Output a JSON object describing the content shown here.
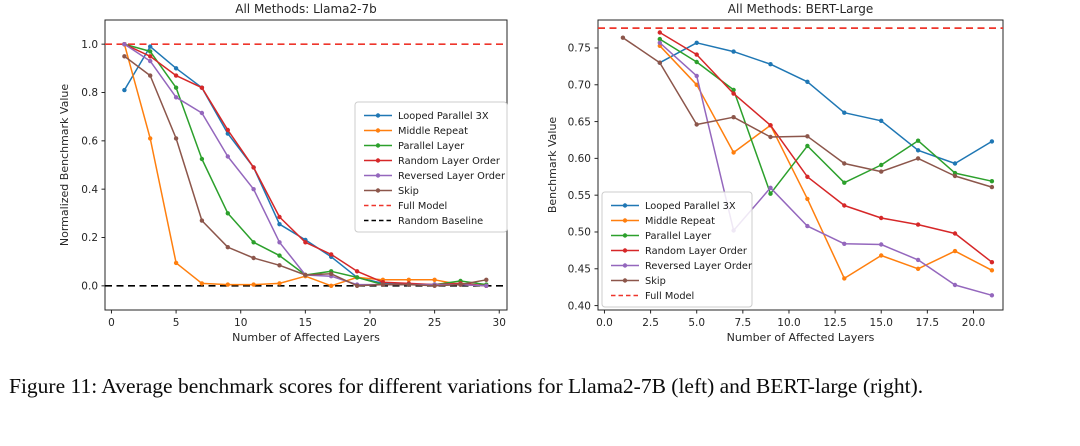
{
  "figure": {
    "caption": "Figure 11: Average benchmark scores for different variations for Llama2-7B (left) and BERT-large (right)."
  },
  "page": {
    "background": "#ffffff",
    "text_color": "#262626"
  },
  "chart_data": [
    {
      "type": "line",
      "title": "All Methods: Llama2-7b",
      "xlabel": "Number of Affected Layers",
      "ylabel": "Normalized Benchmark Value",
      "xlim": [
        -0.5,
        30.6
      ],
      "ylim": [
        -0.1,
        1.1
      ],
      "grid": false,
      "legend_position": "center right",
      "xticks": {
        "values": [
          0,
          5,
          10,
          15,
          20,
          25,
          30
        ],
        "labels": [
          "0",
          "5",
          "10",
          "15",
          "20",
          "25",
          "30"
        ]
      },
      "yticks": {
        "values": [
          0.0,
          0.2,
          0.4,
          0.6,
          0.8,
          1.0
        ],
        "labels": [
          "0.0",
          "0.2",
          "0.4",
          "0.6",
          "0.8",
          "1.0"
        ]
      },
      "x": [
        1,
        3,
        5,
        7,
        9,
        11,
        13,
        15,
        17,
        19,
        21,
        23,
        25,
        27,
        29
      ],
      "series": [
        {
          "name": "Looped Parallel 3X",
          "color": "#1f77b4",
          "values": [
            0.81,
            0.99,
            0.9,
            0.82,
            0.63,
            0.49,
            0.255,
            0.19,
            0.12,
            0.035,
            0.01,
            0.005,
            0.005,
            0.005,
            0.0
          ]
        },
        {
          "name": "Middle Repeat",
          "color": "#ff7f0e",
          "values": [
            1.0,
            0.61,
            0.095,
            0.01,
            0.005,
            0.005,
            0.01,
            0.04,
            0.0,
            0.035,
            0.025,
            0.025,
            0.025,
            0.005,
            0.0
          ]
        },
        {
          "name": "Parallel Layer",
          "color": "#2ca02c",
          "values": [
            1.0,
            0.97,
            0.82,
            0.525,
            0.3,
            0.18,
            0.125,
            0.045,
            0.06,
            0.035,
            0.005,
            0.005,
            0.005,
            0.02,
            0.005
          ]
        },
        {
          "name": "Random Layer Order",
          "color": "#d62728",
          "values": [
            1.0,
            0.95,
            0.87,
            0.82,
            0.645,
            0.49,
            0.285,
            0.18,
            0.13,
            0.06,
            0.015,
            0.01,
            0.005,
            0.01,
            0.0
          ]
        },
        {
          "name": "Reversed Layer Order",
          "color": "#9467bd",
          "values": [
            1.0,
            0.93,
            0.78,
            0.715,
            0.535,
            0.4,
            0.18,
            0.045,
            0.04,
            0.005,
            0.005,
            0.005,
            0.005,
            0.005,
            0.0
          ]
        },
        {
          "name": "Skip",
          "color": "#8c564b",
          "values": [
            0.95,
            0.87,
            0.61,
            0.27,
            0.16,
            0.115,
            0.085,
            0.045,
            0.05,
            0.0,
            0.005,
            0.005,
            0.0,
            0.005,
            0.025
          ]
        }
      ],
      "ref_lines": [
        {
          "name": "Full Model",
          "y": 1.0,
          "color": "#ee352b",
          "style": "dashed"
        },
        {
          "name": "Random Baseline",
          "y": 0.0,
          "color": "#000000",
          "style": "dashed"
        }
      ]
    },
    {
      "type": "line",
      "title": "All Methods: BERT-Large",
      "xlabel": "Number of Affected Layers",
      "ylabel": "Benchmark Value",
      "xlim": [
        -0.35,
        21.6
      ],
      "ylim": [
        0.394,
        0.788
      ],
      "grid": false,
      "legend_position": "lower left",
      "xticks": {
        "values": [
          0,
          2.5,
          5,
          7.5,
          10,
          12.5,
          15,
          17.5,
          20
        ],
        "labels": [
          "0.0",
          "2.5",
          "5.0",
          "7.5",
          "10.0",
          "12.5",
          "15.0",
          "17.5",
          "20.0"
        ]
      },
      "yticks": {
        "values": [
          0.4,
          0.45,
          0.5,
          0.55,
          0.6,
          0.65,
          0.7,
          0.75
        ],
        "labels": [
          "0.40",
          "0.45",
          "0.50",
          "0.55",
          "0.60",
          "0.65",
          "0.70",
          "0.75"
        ]
      },
      "x": [
        1,
        3,
        5,
        7,
        9,
        11,
        13,
        15,
        17,
        19,
        21
      ],
      "series": [
        {
          "name": "Looped Parallel 3X",
          "color": "#1f77b4",
          "values": [
            null,
            0.73,
            0.757,
            0.745,
            0.728,
            0.704,
            0.662,
            0.651,
            0.611,
            0.593,
            0.623
          ]
        },
        {
          "name": "Middle Repeat",
          "color": "#ff7f0e",
          "values": [
            null,
            0.753,
            0.7,
            0.608,
            0.645,
            0.545,
            0.437,
            0.468,
            0.45,
            0.474,
            0.448
          ]
        },
        {
          "name": "Parallel Layer",
          "color": "#2ca02c",
          "values": [
            null,
            0.762,
            0.731,
            0.693,
            0.552,
            0.617,
            0.567,
            0.591,
            0.624,
            0.58,
            0.569
          ]
        },
        {
          "name": "Random Layer Order",
          "color": "#d62728",
          "values": [
            null,
            0.771,
            0.741,
            0.688,
            0.645,
            0.575,
            0.536,
            0.519,
            0.51,
            0.498,
            0.459
          ]
        },
        {
          "name": "Reversed Layer Order",
          "color": "#9467bd",
          "values": [
            null,
            0.757,
            0.712,
            0.502,
            0.56,
            0.508,
            0.484,
            0.483,
            0.462,
            0.428,
            0.414
          ]
        },
        {
          "name": "Skip",
          "color": "#8c564b",
          "values": [
            0.764,
            0.73,
            0.646,
            0.656,
            0.629,
            0.63,
            0.593,
            0.582,
            0.6,
            0.576,
            0.561
          ]
        }
      ],
      "ref_lines": [
        {
          "name": "Full Model",
          "y": 0.777,
          "color": "#ee352b",
          "style": "dashed"
        }
      ]
    }
  ]
}
